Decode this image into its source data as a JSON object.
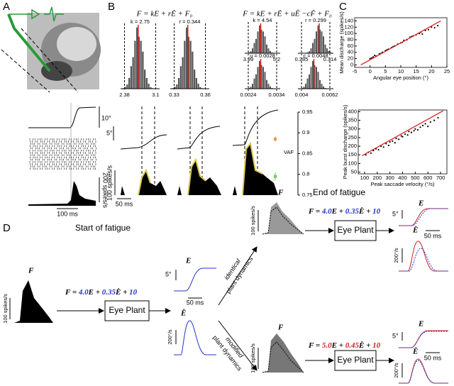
{
  "panel_labels": [
    "A",
    "B",
    "C",
    "D"
  ],
  "panel_a": {
    "scale_angle": "10°",
    "scale_rate": "200 spikes/s",
    "scale_time": "100 ms"
  },
  "panel_b": {
    "equation_1": "F = kE + rĖ + F₀",
    "equation_2": "F = kE + rĖ + uË −cḞ + F₀",
    "histograms": [
      {
        "label": "k = 2.75",
        "ticks": [
          2.38,
          3.1
        ]
      },
      {
        "label": "r = 0.344",
        "ticks": [
          0.33,
          0.36
        ]
      },
      {
        "label": "k = 4.54",
        "ticks": [
          3.99,
          5.2
        ]
      },
      {
        "label": "r = 0.299",
        "ticks": [
          0.285,
          0.314
        ]
      },
      {
        "label": "u = 0.0028",
        "ticks": [
          0.0024,
          0.0034
        ]
      },
      {
        "label": "c = 0.0048",
        "ticks": [
          0.004,
          0.0062
        ]
      }
    ],
    "scale_angle": "5°",
    "scale_rate": "100 spikes/s",
    "scale_time": "50 ms",
    "vaf": {
      "label": "VAF",
      "ylim": [
        0.75,
        0.95
      ],
      "yticks": [
        0.95,
        0.9,
        0.85,
        0.8,
        0.75
      ],
      "points": [
        {
          "value": 0.885,
          "error": 0.006,
          "color": "#e8964a"
        },
        {
          "value": 0.795,
          "error": 0.01,
          "color": "#66cc55"
        }
      ]
    }
  },
  "chart_data": [
    {
      "type": "scatter",
      "xlabel": "Angular eye position (°)",
      "ylabel": "Mean discharge (spikes/s)",
      "xlim": [
        -5,
        25
      ],
      "ylim": [
        -8,
        150
      ],
      "xticks": [
        -5,
        0,
        5,
        10,
        15,
        20,
        25
      ],
      "yticks": [
        0,
        20,
        40,
        60,
        80,
        100,
        120,
        140
      ],
      "color": "#000000",
      "fit_color": "#e02020",
      "x": [
        0,
        0.5,
        1,
        1.5,
        2,
        3,
        3.5,
        4,
        5,
        5.5,
        6,
        7,
        7.5,
        8,
        9,
        10,
        10.5,
        11,
        12,
        13,
        13.5,
        14,
        15,
        16,
        16.5,
        17,
        18,
        19,
        20,
        21,
        22
      ],
      "y": [
        20,
        22,
        25,
        30,
        28,
        35,
        36,
        40,
        45,
        48,
        50,
        55,
        58,
        60,
        66,
        70,
        72,
        78,
        80,
        88,
        90,
        92,
        96,
        100,
        104,
        98,
        110,
        112,
        120,
        118,
        125
      ],
      "fit": {
        "x": [
          -3,
          23
        ],
        "y": [
          0,
          140
        ]
      }
    },
    {
      "type": "scatter",
      "xlabel": "Peak saccade velocity (°/s)",
      "ylabel": "Peak burst discharge (spikes/s)",
      "xlim": [
        50,
        750
      ],
      "ylim": [
        40,
        410
      ],
      "xticks": [
        100,
        200,
        300,
        400,
        500,
        600,
        700
      ],
      "yticks": [
        50,
        100,
        150,
        200,
        250,
        300,
        350,
        400
      ],
      "color": "#000000",
      "fit_color": "#e02020",
      "x": [
        110,
        130,
        150,
        170,
        190,
        210,
        230,
        250,
        270,
        290,
        300,
        320,
        340,
        350,
        370,
        390,
        400,
        420,
        440,
        450,
        470,
        490,
        500,
        520,
        540,
        560,
        580,
        600,
        620,
        650,
        680
      ],
      "y": [
        150,
        165,
        160,
        175,
        185,
        180,
        200,
        195,
        215,
        205,
        225,
        230,
        220,
        245,
        240,
        260,
        255,
        270,
        265,
        285,
        280,
        290,
        300,
        295,
        310,
        320,
        330,
        315,
        340,
        350,
        365
      ],
      "fit": {
        "x": [
          80,
          720
        ],
        "y": [
          145,
          405
        ]
      }
    }
  ],
  "panel_d": {
    "start_title": "Start of fatigue",
    "end_title": "End of fatigue",
    "signal_f": "F",
    "rate_scale": "100 spikes/s",
    "equation_start": [
      "F = ",
      "4.0",
      "E + ",
      "0.35",
      "Ė + ",
      "10"
    ],
    "equation_end": [
      "F = ",
      "5.0",
      "E + ",
      "0.45",
      "Ė + ",
      "10"
    ],
    "plant": "Eye Plant",
    "signal_e": "E",
    "angle_scale": "5°",
    "signal_edot": "Ė",
    "velocity_scale": "200°/s",
    "time_scale": "50 ms",
    "branch_identical": [
      "identical",
      "plant dynamics"
    ],
    "branch_modified": [
      "modified",
      "plant dynamics"
    ]
  }
}
